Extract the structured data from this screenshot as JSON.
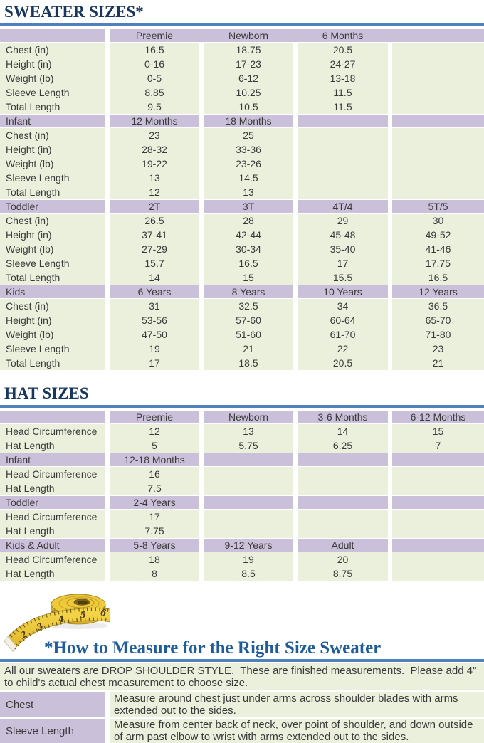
{
  "colors": {
    "rule_blue": "#4F81BD",
    "title_navy": "#17375E",
    "howto_blue": "#1F5C9B",
    "purple": "#CBC0DA",
    "green": "#EBF0DD",
    "tape_yellow": "#EEC939"
  },
  "sweater_table": {
    "title": "SWEATER SIZES*",
    "rows": [
      {
        "t": "htop",
        "c": [
          "",
          "Preemie",
          "Newborn",
          "6 Months",
          ""
        ]
      },
      {
        "t": "d",
        "c": [
          "Chest (in)",
          "16.5",
          "18.75",
          "20.5",
          ""
        ]
      },
      {
        "t": "d",
        "c": [
          "Height (in)",
          "0-16",
          "17-23",
          "24-27",
          ""
        ]
      },
      {
        "t": "d",
        "c": [
          "Weight (lb)",
          "0-5",
          "6-12",
          "13-18",
          ""
        ]
      },
      {
        "t": "d",
        "c": [
          "Sleeve Length",
          "8.85",
          "10.25",
          "11.5",
          ""
        ]
      },
      {
        "t": "d",
        "c": [
          "Total Length",
          "9.5",
          "10.5",
          "11.5",
          ""
        ]
      },
      {
        "t": "s",
        "c": [
          "Infant",
          "12 Months",
          "18 Months",
          "",
          ""
        ]
      },
      {
        "t": "d",
        "c": [
          "Chest (in)",
          "23",
          "25",
          "",
          ""
        ]
      },
      {
        "t": "d",
        "c": [
          "Height (in)",
          "28-32",
          "33-36",
          "",
          ""
        ]
      },
      {
        "t": "d",
        "c": [
          "Weight (lb)",
          "19-22",
          "23-26",
          "",
          ""
        ]
      },
      {
        "t": "d",
        "c": [
          "Sleeve Length",
          "13",
          "14.5",
          "",
          ""
        ]
      },
      {
        "t": "d",
        "c": [
          "Total Length",
          "12",
          "13",
          "",
          ""
        ]
      },
      {
        "t": "s",
        "c": [
          "Toddler",
          "2T",
          "3T",
          "4T/4",
          "5T/5"
        ]
      },
      {
        "t": "d",
        "c": [
          "Chest (in)",
          "26.5",
          "28",
          "29",
          "30"
        ]
      },
      {
        "t": "d",
        "c": [
          "Height (in)",
          "37-41",
          "42-44",
          "45-48",
          "49-52"
        ]
      },
      {
        "t": "d",
        "c": [
          "Weight (lb)",
          "27-29",
          "30-34",
          "35-40",
          "41-46"
        ]
      },
      {
        "t": "d",
        "c": [
          "Sleeve Length",
          "15.7",
          "16.5",
          "17",
          "17.75"
        ]
      },
      {
        "t": "d",
        "c": [
          "Total Length",
          "14",
          "15",
          "15.5",
          "16.5"
        ]
      },
      {
        "t": "s",
        "c": [
          "Kids",
          "6 Years",
          "8 Years",
          "10 Years",
          "12 Years"
        ]
      },
      {
        "t": "d",
        "c": [
          "Chest (in)",
          "31",
          "32.5",
          "34",
          "36.5"
        ]
      },
      {
        "t": "d",
        "c": [
          "Height (in)",
          "53-56",
          "57-60",
          "60-64",
          "65-70"
        ]
      },
      {
        "t": "d",
        "c": [
          "Weight (lb)",
          "47-50",
          "51-60",
          "61-70",
          "71-80"
        ]
      },
      {
        "t": "d",
        "c": [
          "Sleeve Length",
          "19",
          "21",
          "22",
          "23"
        ]
      },
      {
        "t": "d",
        "c": [
          "Total Length",
          "17",
          "18.5",
          "20.5",
          "21"
        ]
      }
    ]
  },
  "hat_table": {
    "title": "HAT SIZES",
    "rows": [
      {
        "t": "s",
        "c": [
          "",
          "Preemie",
          "Newborn",
          "3-6 Months",
          "6-12 Months"
        ]
      },
      {
        "t": "d",
        "c": [
          "Head Circumference",
          "12",
          "13",
          "14",
          "15"
        ]
      },
      {
        "t": "d",
        "c": [
          "Hat Length",
          "5",
          "5.75",
          "6.25",
          "7"
        ]
      },
      {
        "t": "s",
        "c": [
          "Infant",
          "12-18 Months",
          "",
          "",
          ""
        ]
      },
      {
        "t": "d",
        "c": [
          "Head Circumference",
          "16",
          "",
          "",
          ""
        ]
      },
      {
        "t": "d",
        "c": [
          "Hat Length",
          "7.5",
          "",
          "",
          ""
        ]
      },
      {
        "t": "s",
        "c": [
          "Toddler",
          "2-4 Years",
          "",
          "",
          ""
        ]
      },
      {
        "t": "d",
        "c": [
          "Head Circumference",
          "17",
          "",
          "",
          ""
        ]
      },
      {
        "t": "d",
        "c": [
          "Hat Length",
          "7.75",
          "",
          "",
          ""
        ]
      },
      {
        "t": "s",
        "c": [
          "Kids & Adult",
          "5-8 Years",
          "9-12 Years",
          "Adult",
          ""
        ]
      },
      {
        "t": "d",
        "c": [
          "Head Circumference",
          "18",
          "19",
          "20",
          ""
        ]
      },
      {
        "t": "d",
        "c": [
          "Hat Length",
          "8",
          "8.5",
          "8.75",
          ""
        ]
      }
    ]
  },
  "measure": {
    "title": "*How to Measure for the Right Size Sweater",
    "intro": "All our sweaters are DROP SHOULDER STYLE.  These are finished measurements.  Please add 4\" to child's actual chest measurement to choose size.",
    "rows": [
      {
        "label": "Chest",
        "text": "Measure around chest just under arms across shoulder blades with arms extended out to the sides."
      },
      {
        "label": "Sleeve Length",
        "text": "Measure from center back of neck, over point of shoulder, and down outside of arm past elbow to wrist with arms extended out to the sides."
      }
    ],
    "tape_numbers": [
      "1",
      "2",
      "3",
      "4",
      "5",
      "6"
    ]
  }
}
